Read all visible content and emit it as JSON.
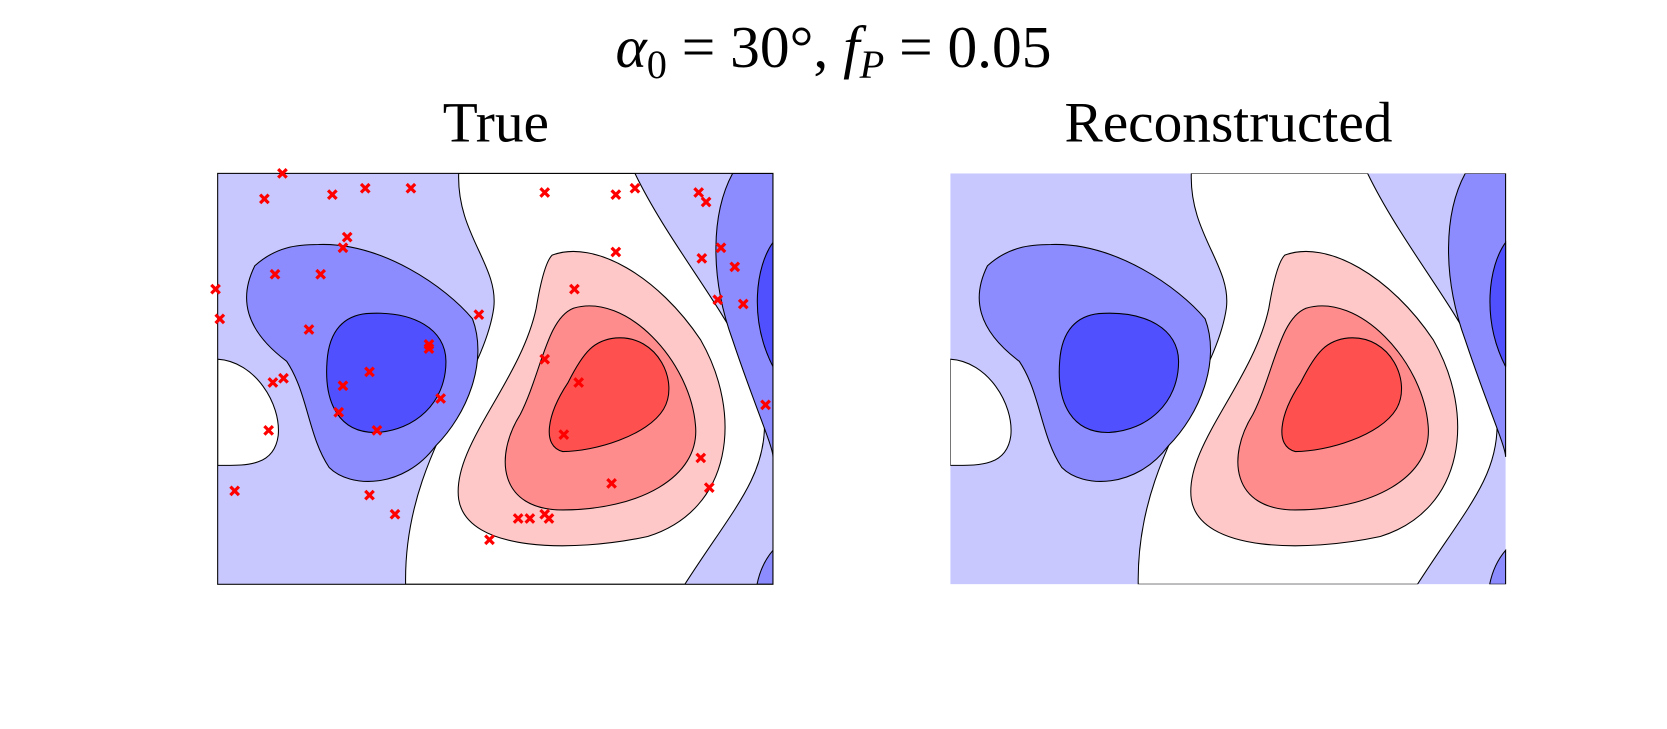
{
  "figure": {
    "title_parts": [
      "α",
      "0",
      " = 30°,  ",
      "f",
      "P",
      " = 0.05"
    ],
    "panels": [
      {
        "title": "True"
      },
      {
        "title": "Reconstructed"
      }
    ]
  }
}
